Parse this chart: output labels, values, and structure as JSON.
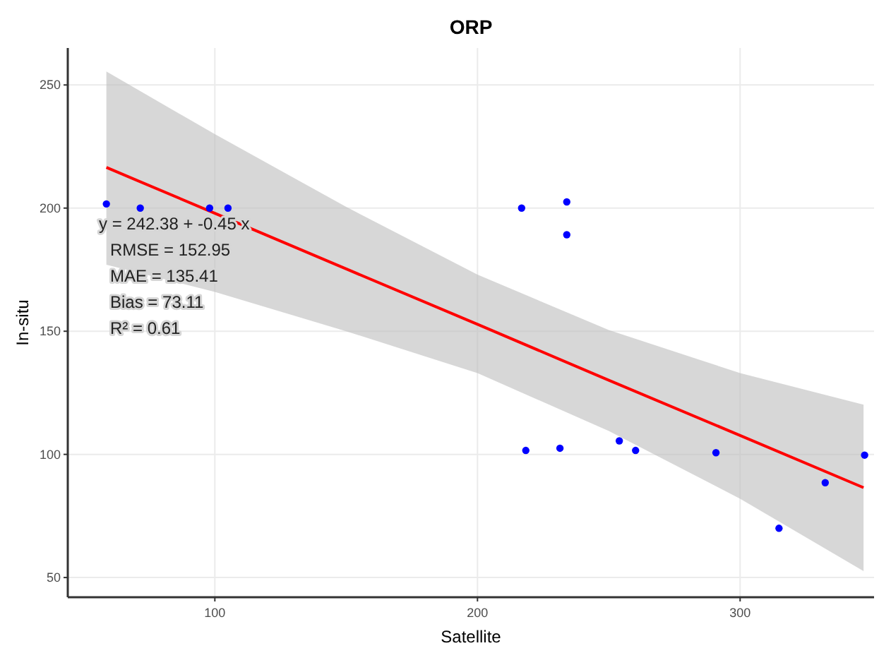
{
  "chart_data": {
    "type": "scatter",
    "title": "ORP",
    "xlabel": "Satellite",
    "ylabel": "In-situ",
    "xlim": [
      44,
      351
    ],
    "xticks": [
      100,
      200,
      300
    ],
    "ylim": [
      42,
      265
    ],
    "yticks": [
      50,
      100,
      150,
      200,
      250
    ],
    "grid": true,
    "series": [
      {
        "type": "line",
        "color": "#ff0000",
        "x": [
          58.7,
          100,
          150,
          200,
          250,
          300,
          347
        ],
        "values": [
          216.5,
          197.9,
          175.3,
          152.8,
          130.1,
          107.7,
          86.5
        ],
        "lower": [
          177,
          166,
          150,
          133,
          109.5,
          82,
          52.6
        ],
        "upper": [
          255.5,
          230,
          200.5,
          173,
          150.5,
          133,
          120.2
        ]
      },
      {
        "color": "#0000ff",
        "marker": "circle",
        "x": [
          58.7,
          71.6,
          98,
          105,
          216.8,
          234,
          234,
          218.4,
          231.4,
          254,
          260.2,
          290.8,
          314.8,
          332.4,
          347.4
        ],
        "values": [
          201.7,
          200,
          200,
          200,
          200,
          202.5,
          189.2,
          101.6,
          102.5,
          105.5,
          101.6,
          100.7,
          70,
          88.5,
          99.7
        ]
      }
    ],
    "annotations": [
      "y = 242.38 + -0.45 x",
      "RMSE =  152.95",
      "MAE =  135.41",
      "Bias =  73.11",
      "R² =  0.61"
    ]
  }
}
